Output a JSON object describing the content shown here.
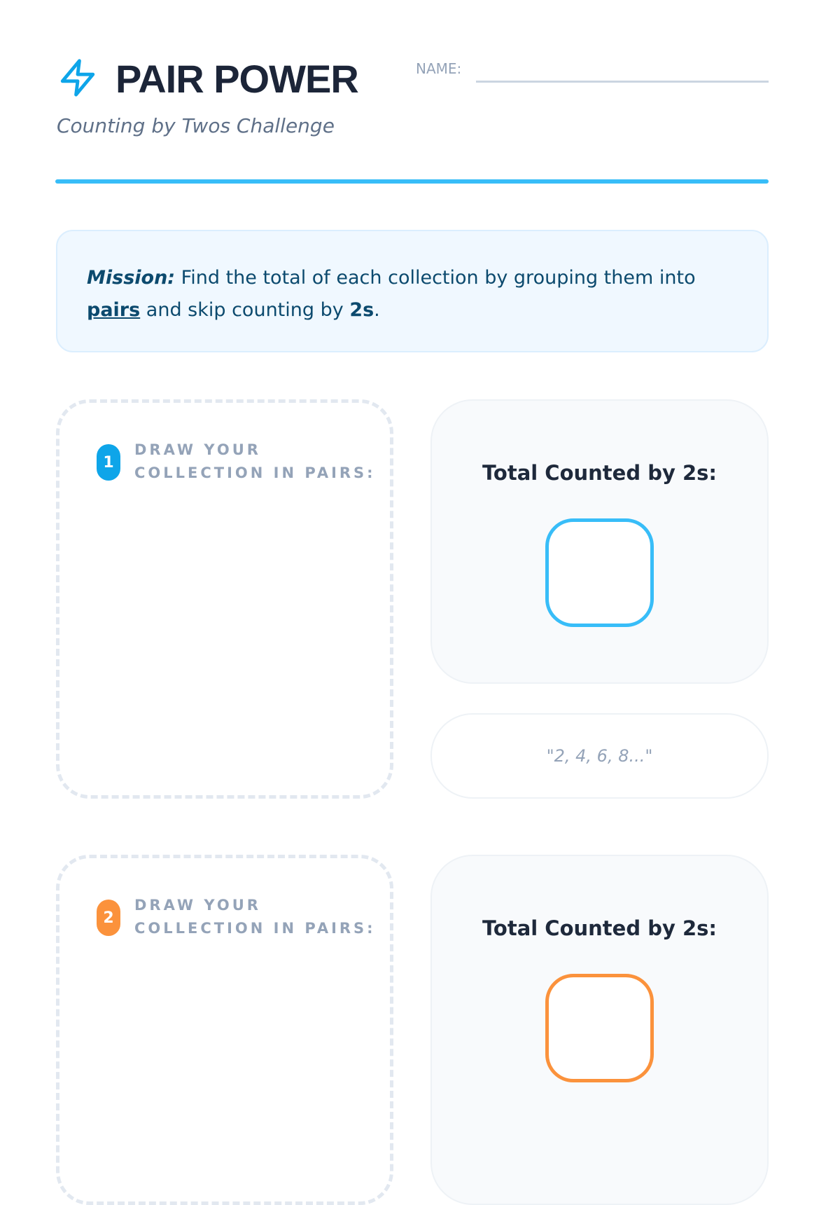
{
  "header": {
    "title": "PAIR POWER",
    "subtitle": "Counting by Twos Challenge",
    "name_label": "NAME:",
    "icon": "lightning-bolt-icon"
  },
  "mission": {
    "label": "Mission:",
    "text1": " Find the total of each collection by grouping them into ",
    "pairs": "pairs",
    "text2": " and skip counting by ",
    "twos": "2s",
    "end": "."
  },
  "problems": [
    {
      "number": "1",
      "draw_label_1": "DRAW YOUR",
      "draw_label_2": "COLLECTION IN PAIRS:",
      "total_label": "Total Counted by 2s:",
      "color": "#0ea5e9",
      "box_color": "#38bdf8",
      "hint": "\"2, 4, 6, 8...\""
    },
    {
      "number": "2",
      "draw_label_1": "DRAW YOUR",
      "draw_label_2": "COLLECTION IN PAIRS:",
      "total_label": "Total Counted by 2s:",
      "color": "#fb923c",
      "box_color": "#fb923c"
    }
  ],
  "colors": {
    "accent": "#38bdf8",
    "title": "#1c2538"
  }
}
